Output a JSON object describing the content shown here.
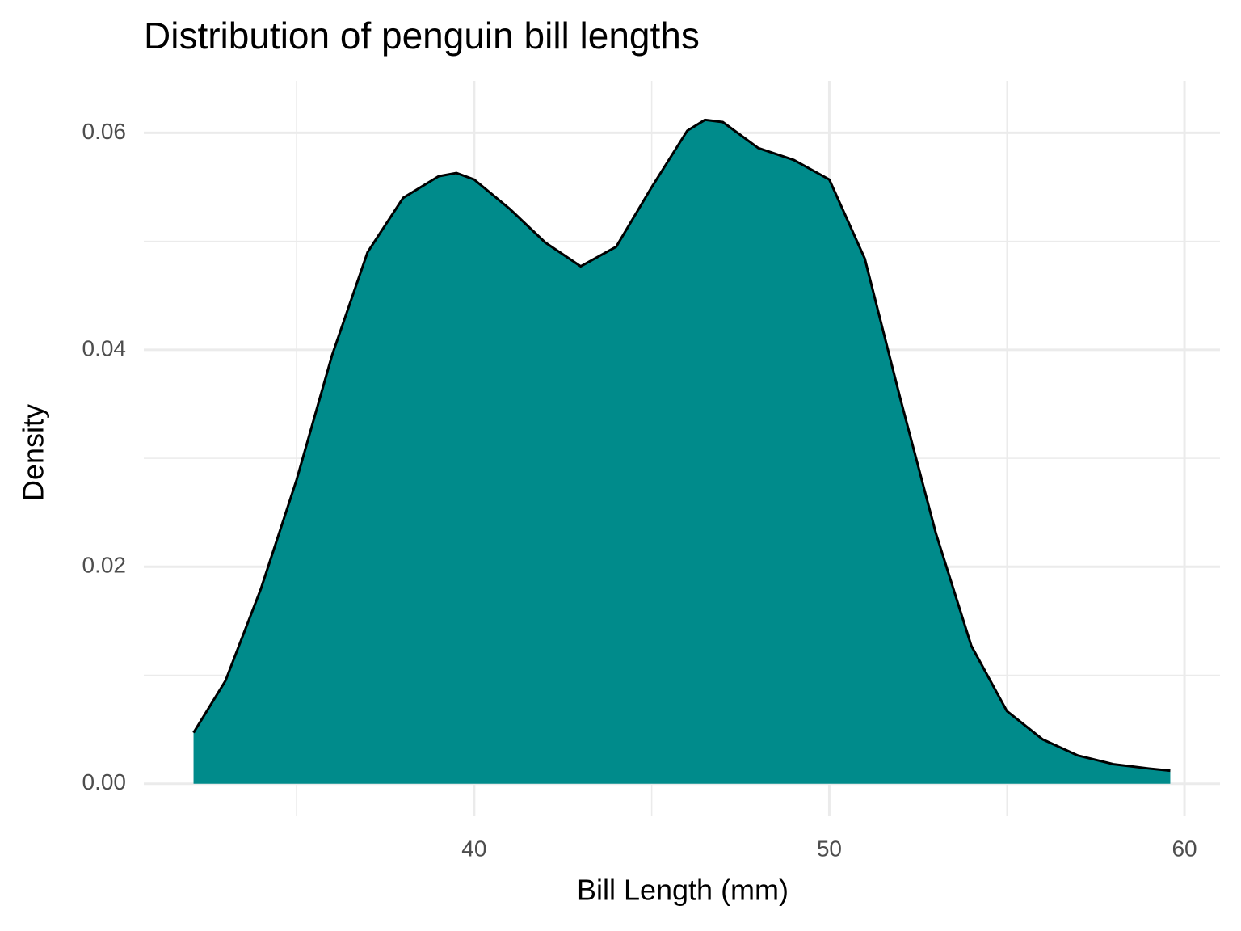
{
  "chart_data": {
    "type": "area",
    "title": "Distribution of penguin bill lengths",
    "x_label": "Bill Length (mm)",
    "y_label": "Density",
    "x": [
      32.1,
      33,
      34,
      35,
      36,
      37,
      38,
      39,
      39.5,
      40,
      41,
      42,
      43,
      44,
      45,
      46,
      46.5,
      47,
      48,
      49,
      50,
      51,
      52,
      53,
      54,
      55,
      56,
      57,
      58,
      59,
      59.6
    ],
    "values": [
      0.0047,
      0.0095,
      0.018,
      0.028,
      0.0395,
      0.049,
      0.054,
      0.056,
      0.0563,
      0.0557,
      0.053,
      0.0499,
      0.0477,
      0.0495,
      0.055,
      0.0602,
      0.0612,
      0.061,
      0.0586,
      0.0575,
      0.0557,
      0.0484,
      0.0355,
      0.0231,
      0.0127,
      0.0067,
      0.0041,
      0.0026,
      0.0018,
      0.0014,
      0.0012
    ],
    "color": "#008b8b",
    "line_color": "#000000",
    "xlim": [
      30.7,
      61
    ],
    "ylim": [
      -0.003,
      0.0648
    ],
    "xticks": [
      40,
      50,
      60
    ],
    "yticks": [
      {
        "value": 0,
        "label": "0.00"
      },
      0.02,
      0.04,
      0.06
    ],
    "x_minor_ticks": [
      35,
      45,
      55
    ],
    "y_minor_ticks": [
      0.01,
      0.03,
      0.05
    ],
    "grid": true
  }
}
